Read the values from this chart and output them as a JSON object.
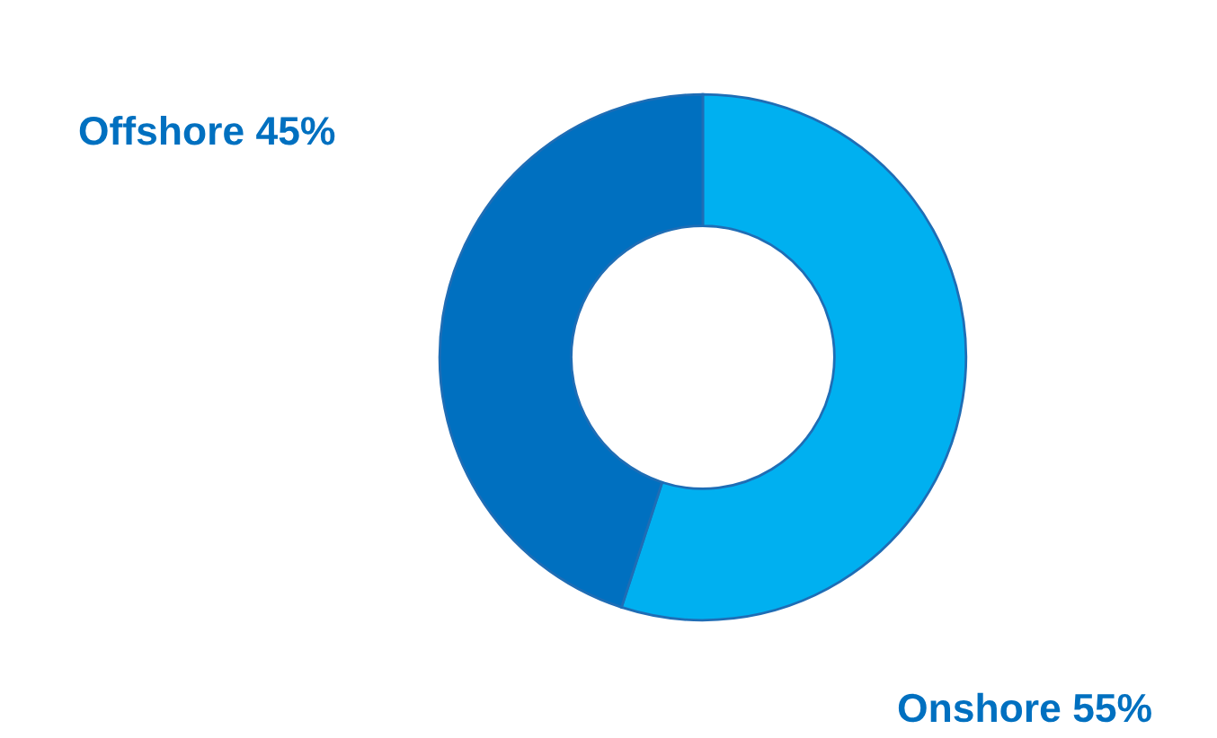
{
  "chart_data": {
    "type": "donut",
    "categories": [
      "Onshore",
      "Offshore"
    ],
    "values": [
      55,
      45
    ],
    "value_labels": [
      "55%",
      "45%"
    ],
    "colors": [
      "#00b0f0",
      "#0070c0"
    ],
    "legend": false
  }
}
